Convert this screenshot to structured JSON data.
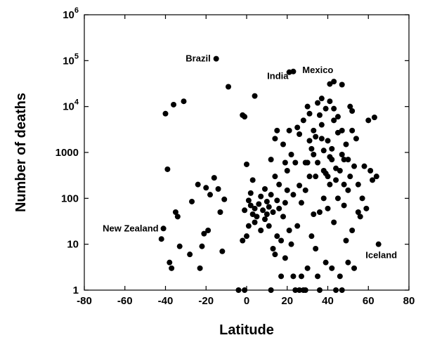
{
  "chart_data": {
    "type": "scatter",
    "title": "",
    "xlabel": "Latitude",
    "ylabel": "Number of deaths",
    "xlim": [
      -80,
      80
    ],
    "ylim": [
      1,
      1000000
    ],
    "yscale": "log",
    "grid": false,
    "legend": "none",
    "marker_color": "#000000",
    "x_ticks": [
      -80,
      -60,
      -40,
      -20,
      0,
      20,
      40,
      60,
      80
    ],
    "x_tick_labels": [
      "-80",
      "-60",
      "-40",
      "-20",
      "0",
      "20",
      "40",
      "60",
      "80"
    ],
    "y_ticks": [
      {
        "value": 1,
        "base": "1",
        "exp": ""
      },
      {
        "value": 10,
        "base": "10",
        "exp": ""
      },
      {
        "value": 100,
        "base": "100",
        "exp": ""
      },
      {
        "value": 1000,
        "base": "1000",
        "exp": ""
      },
      {
        "value": 10000,
        "base": "10",
        "exp": "4"
      },
      {
        "value": 100000,
        "base": "10",
        "exp": "5"
      },
      {
        "value": 1000000,
        "base": "10",
        "exp": "6"
      }
    ],
    "annotations": [
      {
        "text": "Brazil",
        "x": -15,
        "y": 110000
      },
      {
        "text": "India",
        "x": 22,
        "y": 57000
      },
      {
        "text": "Mexico",
        "x": 24,
        "y": 60000
      },
      {
        "text": "New Zealand",
        "x": -41,
        "y": 22
      },
      {
        "text": "Iceland",
        "x": 65,
        "y": 10
      }
    ],
    "points": [
      [
        -15,
        110000
      ],
      [
        21,
        56000
      ],
      [
        23,
        58000
      ],
      [
        -9,
        27000
      ],
      [
        43,
        35000
      ],
      [
        41,
        31000
      ],
      [
        47,
        30000
      ],
      [
        -40,
        7000
      ],
      [
        -36,
        11000
      ],
      [
        -31,
        13000
      ],
      [
        4,
        17000
      ],
      [
        -1,
        6000
      ],
      [
        -2,
        6500
      ],
      [
        63,
        5800
      ],
      [
        -41,
        22
      ],
      [
        -42,
        13
      ],
      [
        65,
        10
      ],
      [
        -39,
        430
      ],
      [
        -38,
        4
      ],
      [
        -37,
        3
      ],
      [
        -35,
        50
      ],
      [
        -34,
        40
      ],
      [
        -33,
        9
      ],
      [
        -28,
        6
      ],
      [
        -27,
        85
      ],
      [
        -24,
        200
      ],
      [
        -23,
        3
      ],
      [
        -22,
        9
      ],
      [
        -21,
        17
      ],
      [
        -20,
        170
      ],
      [
        -19,
        20
      ],
      [
        -18,
        120
      ],
      [
        -16,
        280
      ],
      [
        -14,
        160
      ],
      [
        -13,
        50
      ],
      [
        -12,
        7
      ],
      [
        -11,
        95
      ],
      [
        -4,
        1
      ],
      [
        -2,
        12
      ],
      [
        -1,
        1
      ],
      [
        -1,
        55
      ],
      [
        0,
        550
      ],
      [
        0,
        15
      ],
      [
        1,
        25
      ],
      [
        1,
        90
      ],
      [
        2,
        130
      ],
      [
        2,
        70
      ],
      [
        3,
        45
      ],
      [
        3,
        250
      ],
      [
        4,
        30
      ],
      [
        4,
        60
      ],
      [
        5,
        40
      ],
      [
        6,
        75
      ],
      [
        7,
        110
      ],
      [
        7,
        20
      ],
      [
        8,
        55
      ],
      [
        9,
        35
      ],
      [
        9,
        160
      ],
      [
        10,
        85
      ],
      [
        10,
        45
      ],
      [
        11,
        65
      ],
      [
        11,
        25
      ],
      [
        12,
        1
      ],
      [
        12,
        700
      ],
      [
        12,
        120
      ],
      [
        13,
        8
      ],
      [
        13,
        50
      ],
      [
        14,
        6
      ],
      [
        14,
        300
      ],
      [
        14,
        2000
      ],
      [
        15,
        15
      ],
      [
        15,
        90
      ],
      [
        15,
        3000
      ],
      [
        16,
        60
      ],
      [
        16,
        200
      ],
      [
        17,
        12
      ],
      [
        17,
        2
      ],
      [
        18,
        1500
      ],
      [
        18,
        40
      ],
      [
        19,
        5
      ],
      [
        19,
        80
      ],
      [
        19,
        600
      ],
      [
        20,
        400
      ],
      [
        20,
        150
      ],
      [
        21,
        20
      ],
      [
        21,
        3000
      ],
      [
        22,
        900
      ],
      [
        22,
        10
      ],
      [
        23,
        2
      ],
      [
        23,
        120
      ],
      [
        24,
        1
      ],
      [
        24,
        600
      ],
      [
        25,
        25
      ],
      [
        25,
        3500
      ],
      [
        26,
        1
      ],
      [
        26,
        190
      ],
      [
        27,
        2
      ],
      [
        27,
        80
      ],
      [
        28,
        1
      ],
      [
        28,
        5000
      ],
      [
        29,
        1
      ],
      [
        29,
        600
      ],
      [
        30,
        10000
      ],
      [
        30,
        3
      ],
      [
        31,
        300
      ],
      [
        31,
        7000
      ],
      [
        32,
        15
      ],
      [
        32,
        1200
      ],
      [
        33,
        45
      ],
      [
        33,
        3000
      ],
      [
        34,
        8
      ],
      [
        34,
        300
      ],
      [
        35,
        600
      ],
      [
        35,
        2
      ],
      [
        36,
        1
      ],
      [
        36,
        50
      ],
      [
        37,
        2000
      ],
      [
        37,
        15000
      ],
      [
        38,
        400
      ],
      [
        38,
        100
      ],
      [
        39,
        9000
      ],
      [
        39,
        4
      ],
      [
        40,
        1800
      ],
      [
        40,
        60
      ],
      [
        41,
        800
      ],
      [
        41,
        200
      ],
      [
        42,
        3
      ],
      [
        42,
        1200
      ],
      [
        43,
        5000
      ],
      [
        43,
        30
      ],
      [
        44,
        250
      ],
      [
        44,
        1
      ],
      [
        45,
        6000
      ],
      [
        45,
        100
      ],
      [
        46,
        400
      ],
      [
        46,
        2
      ],
      [
        47,
        1
      ],
      [
        47,
        3000
      ],
      [
        48,
        700
      ],
      [
        48,
        70
      ],
      [
        49,
        12
      ],
      [
        49,
        1500
      ],
      [
        50,
        150
      ],
      [
        50,
        4
      ],
      [
        51,
        10000
      ],
      [
        51,
        300
      ],
      [
        52,
        8000
      ],
      [
        52,
        20
      ],
      [
        53,
        500
      ],
      [
        53,
        3
      ],
      [
        54,
        2000
      ],
      [
        55,
        200
      ],
      [
        55,
        50
      ],
      [
        56,
        40
      ],
      [
        57,
        100
      ],
      [
        58,
        500
      ],
      [
        59,
        60
      ],
      [
        60,
        5000
      ],
      [
        61,
        400
      ],
      [
        62,
        250
      ],
      [
        64,
        300
      ],
      [
        26,
        2500
      ],
      [
        36,
        6500
      ],
      [
        41,
        13000
      ],
      [
        45,
        2700
      ],
      [
        33,
        900
      ],
      [
        39,
        350
      ],
      [
        29,
        150
      ],
      [
        44,
        450
      ],
      [
        47,
        900
      ],
      [
        38,
        1100
      ],
      [
        42,
        700
      ],
      [
        34,
        2200
      ],
      [
        40,
        300
      ],
      [
        50,
        700
      ],
      [
        31,
        1800
      ],
      [
        35,
        12000
      ],
      [
        37,
        4000
      ],
      [
        43,
        9000
      ],
      [
        48,
        200
      ],
      [
        52,
        3000
      ],
      [
        30,
        600
      ]
    ]
  }
}
